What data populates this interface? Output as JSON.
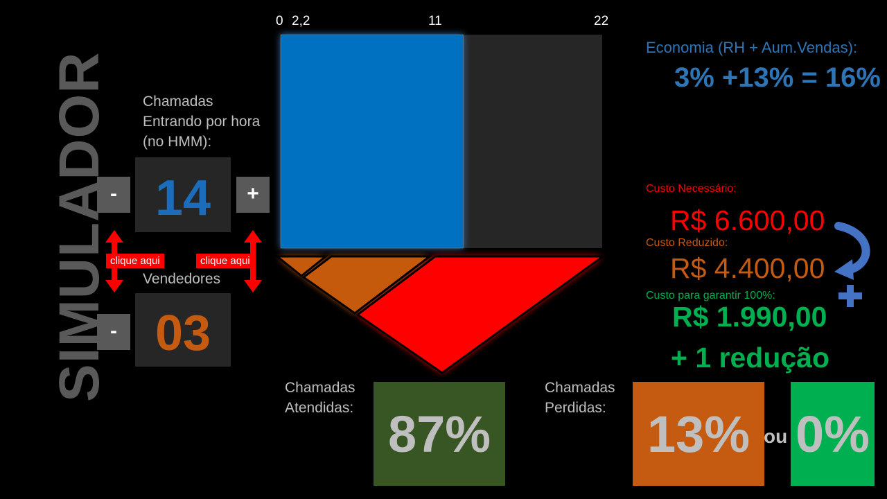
{
  "title": "SIMULADOR",
  "calls_in": {
    "label": "Chamadas Entrando por hora (no HMM):",
    "value": "14",
    "minus": "-",
    "plus": "+"
  },
  "sellers": {
    "label": "Vendedores",
    "value": "03",
    "minus": "-"
  },
  "click_hint": "clique aqui",
  "chart": {
    "ticks": [
      "0",
      "2,2",
      "11",
      "22"
    ],
    "axis_max": 22,
    "bar_value": 12.5,
    "bar_color": "#0070c0",
    "track_color": "#262626"
  },
  "economy": {
    "label": "Economia (RH + Aum.Vendas):",
    "value": "3% +13% = 16%"
  },
  "costs": {
    "required_label": "Custo Necessário:",
    "required_value": "R$ 6.600,00",
    "reduced_label": "Custo Reduzido:",
    "reduced_value": "R$ 4.400,00",
    "guarantee_label": "Custo para garantir 100%:",
    "guarantee_value": "R$ 1.990,00",
    "extra": "+ 1 redução"
  },
  "answered": {
    "label": "Chamadas Atendidas:",
    "value": "87%",
    "color": "#375623"
  },
  "lost": {
    "label": "Chamadas Perdidas:",
    "value": "13%",
    "color": "#c55a11",
    "or": "ou",
    "alt_value": "0%",
    "alt_color": "#00b050"
  },
  "colors": {
    "red": "#ff0000",
    "orange": "#c55a11",
    "green": "#00b050",
    "blue": "#2e75b6"
  }
}
